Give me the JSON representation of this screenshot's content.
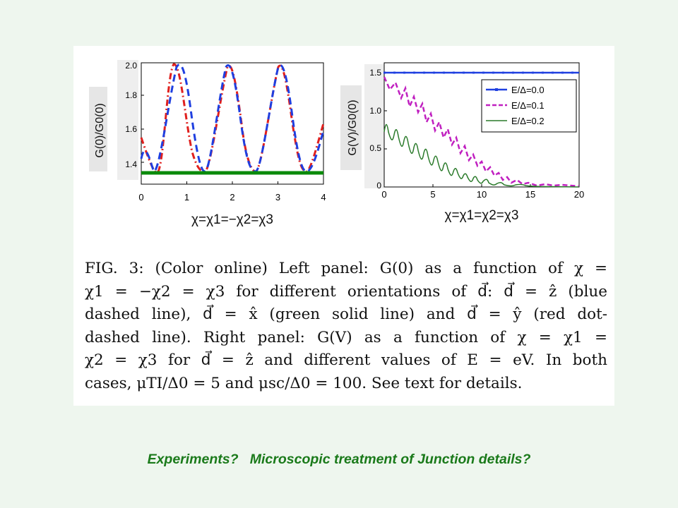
{
  "figure": {
    "left_panel": {
      "ylabel": "G(0)/G0(0)",
      "xlabel": "χ=χ1=−χ2=χ3",
      "xticks": [
        "0",
        "1",
        "2",
        "3",
        "4"
      ],
      "yticks": [
        "1.4",
        "1.6",
        "1.8",
        "2.0"
      ]
    },
    "right_panel": {
      "ylabel": "G(V)/G0(0)",
      "xlabel": "χ=χ1=χ2=χ3",
      "xticks": [
        "0",
        "5",
        "10",
        "15",
        "20"
      ],
      "yticks": [
        "0",
        "0.5",
        "1.0",
        "1.5"
      ],
      "legend": [
        "E/Δ=0.0",
        "E/Δ=0.1",
        "E/Δ=0.2"
      ]
    },
    "caption_lines": [
      "FIG. 3: (Color online) Left panel: G(0) as a function of χ =",
      "χ1 = −χ2 = χ3 for different orientations of d⃗: d⃗ = ẑ (blue",
      "dashed line), d⃗ = x̂ (green solid line) and d⃗ = ŷ (red dot-",
      "dashed line). Right panel: G(V) as a function of χ = χ1 =",
      "χ2 = χ3 for d⃗ = ẑ and different values of E = eV. In both",
      "cases, μTI/Δ0 = 5 and μsc/Δ0 = 100. See text for details."
    ]
  },
  "footer_question": "Experiments?   Microscopic treatment of Junction details?",
  "colors": {
    "blue": "#1f3fe0",
    "red": "#e0201e",
    "green": "#0a8a0a",
    "magenta": "#c020c0",
    "dark_green": "#2a7a2a",
    "footer_text": "#1a7a1a"
  },
  "chart_data": [
    {
      "type": "line",
      "xlabel": "χ=χ1=−χ2=χ3",
      "ylabel": "G(0)/G0(0)",
      "xlim": [
        0,
        4
      ],
      "ylim": [
        1.33,
        2.0
      ],
      "series": [
        {
          "x": [
            0,
            0.39,
            0.78,
            1.18,
            1.57,
            1.96,
            2.36,
            2.75,
            3.14,
            3.53,
            3.93,
            4.0
          ],
          "values": [
            1.4,
            1.33,
            1.6,
            2.0,
            1.6,
            1.33,
            1.6,
            2.0,
            1.6,
            1.33,
            1.6,
            1.62
          ]
        },
        {
          "x": [
            0,
            0.39,
            0.78,
            1.18,
            1.57,
            1.96,
            2.36,
            2.75,
            3.14,
            3.53,
            3.93,
            4.0
          ],
          "values": [
            1.6,
            2.0,
            1.6,
            1.33,
            1.6,
            2.0,
            1.6,
            1.33,
            1.6,
            2.0,
            1.6,
            1.55
          ]
        },
        {
          "x": [
            0,
            4
          ],
          "values": [
            1.33,
            1.33
          ]
        }
      ]
    },
    {
      "type": "line",
      "xlabel": "χ=χ1=χ2=χ3",
      "ylabel": "G(V)/G0(0)",
      "xlim": [
        0,
        20
      ],
      "ylim": [
        0,
        1.6
      ],
      "series": [
        {
          "name": "E/Δ=0.0",
          "x": [
            0,
            1,
            2,
            3,
            4,
            5,
            6,
            7,
            8,
            9,
            10,
            11,
            12,
            13,
            14,
            15,
            16,
            17,
            18,
            19,
            20
          ],
          "values": [
            1.5,
            1.5,
            1.5,
            1.5,
            1.5,
            1.5,
            1.5,
            1.5,
            1.5,
            1.5,
            1.5,
            1.5,
            1.5,
            1.5,
            1.5,
            1.5,
            1.5,
            1.5,
            1.5,
            1.5,
            1.5
          ]
        },
        {
          "name": "E/Δ=0.1",
          "x": [
            0,
            1,
            2,
            3,
            4,
            5,
            6,
            7,
            8,
            9,
            10,
            11,
            12,
            13,
            14,
            15,
            16,
            17,
            18,
            19,
            20
          ],
          "values": [
            1.45,
            1.25,
            1.15,
            1.05,
            0.95,
            0.85,
            0.75,
            0.65,
            0.58,
            0.48,
            0.42,
            0.35,
            0.3,
            0.24,
            0.2,
            0.15,
            0.12,
            0.09,
            0.07,
            0.05,
            0.03
          ]
        },
        {
          "name": "E/Δ=0.2",
          "x": [
            0,
            1,
            2,
            3,
            4,
            5,
            6,
            7,
            8,
            9,
            10,
            11,
            12,
            13,
            14,
            15,
            16,
            17,
            18,
            19,
            20
          ],
          "values": [
            0.7,
            0.62,
            0.55,
            0.48,
            0.42,
            0.36,
            0.31,
            0.27,
            0.22,
            0.18,
            0.15,
            0.12,
            0.09,
            0.07,
            0.05,
            0.03,
            0.02,
            0.01,
            0.01,
            0.0,
            0.0
          ]
        }
      ]
    }
  ]
}
